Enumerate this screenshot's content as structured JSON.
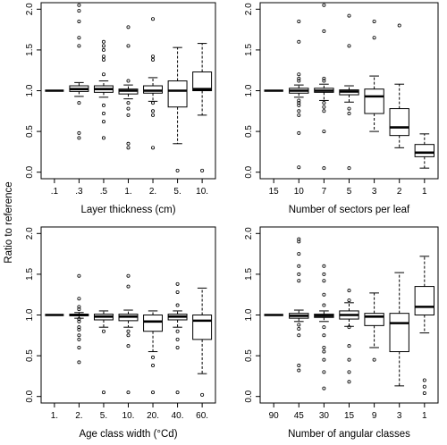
{
  "figure": {
    "ylabel": "Ratio to reference"
  },
  "chart_data": [
    {
      "type": "box",
      "xlabel": "Layer thickness (cm)",
      "ylabel": "Ratio to reference",
      "ylim": [
        0,
        2
      ],
      "yticks": [
        "0.0",
        "0.5",
        "1.0",
        "1.5",
        "2.0"
      ],
      "categories": [
        ".1",
        ".3",
        ".5",
        "1.",
        "2.",
        "5.",
        "10."
      ],
      "boxes": [
        {
          "min": 1.0,
          "q1": 1.0,
          "median": 1.0,
          "q3": 1.0,
          "max": 1.0,
          "outliers": []
        },
        {
          "min": 0.93,
          "q1": 0.99,
          "median": 1.02,
          "q3": 1.06,
          "max": 1.1,
          "outliers": [
            2.05,
            1.98,
            1.85,
            1.65,
            1.55,
            0.85,
            0.48,
            0.42
          ]
        },
        {
          "min": 0.92,
          "q1": 0.98,
          "median": 1.02,
          "q3": 1.06,
          "max": 1.12,
          "outliers": [
            1.6,
            1.55,
            1.5,
            1.42,
            1.38,
            1.2,
            0.82,
            0.72,
            0.62,
            0.42
          ]
        },
        {
          "min": 0.9,
          "q1": 0.96,
          "median": 1.0,
          "q3": 1.02,
          "max": 1.07,
          "outliers": [
            1.78,
            1.55,
            1.12,
            0.85,
            0.78,
            0.7,
            0.35,
            0.3
          ]
        },
        {
          "min": 0.87,
          "q1": 0.97,
          "median": 1.0,
          "q3": 1.06,
          "max": 1.16,
          "outliers": [
            1.88,
            1.42,
            1.38,
            0.85,
            0.75,
            0.7,
            0.3
          ]
        },
        {
          "min": 0.35,
          "q1": 0.8,
          "median": 1.0,
          "q3": 1.12,
          "max": 1.53,
          "outliers": [
            0.02
          ]
        },
        {
          "min": 0.7,
          "q1": 1.0,
          "median": 1.02,
          "q3": 1.23,
          "max": 1.58,
          "outliers": [
            0.02
          ]
        }
      ]
    },
    {
      "type": "box",
      "xlabel": "Number of sectors per leaf",
      "ylim": [
        0,
        2
      ],
      "yticks": [
        "0.0",
        "0.5",
        "1.0",
        "1.5",
        "2.0"
      ],
      "categories": [
        "15",
        "10",
        "7",
        "5",
        "3",
        "2",
        "1"
      ],
      "boxes": [
        {
          "min": 1.0,
          "q1": 1.0,
          "median": 1.0,
          "q3": 1.0,
          "max": 1.0,
          "outliers": []
        },
        {
          "min": 0.92,
          "q1": 0.97,
          "median": 1.0,
          "q3": 1.03,
          "max": 1.07,
          "outliers": [
            1.85,
            1.6,
            1.2,
            1.15,
            1.12,
            0.88,
            0.85,
            0.82,
            0.75,
            0.7,
            0.48,
            0.06
          ]
        },
        {
          "min": 0.88,
          "q1": 0.98,
          "median": 1.0,
          "q3": 1.03,
          "max": 1.08,
          "outliers": [
            2.05,
            1.73,
            1.15,
            1.12,
            0.85,
            0.8,
            0.75,
            0.5,
            0.05
          ]
        },
        {
          "min": 0.86,
          "q1": 0.95,
          "median": 0.99,
          "q3": 1.01,
          "max": 1.06,
          "outliers": [
            1.92,
            1.55,
            0.78,
            0.72,
            0.05
          ]
        },
        {
          "min": 0.5,
          "q1": 0.72,
          "median": 0.93,
          "q3": 1.02,
          "max": 1.18,
          "outliers": [
            1.85,
            1.65
          ]
        },
        {
          "min": 0.3,
          "q1": 0.45,
          "median": 0.55,
          "q3": 0.78,
          "max": 1.08,
          "outliers": [
            1.8
          ]
        },
        {
          "min": 0.05,
          "q1": 0.19,
          "median": 0.24,
          "q3": 0.34,
          "max": 0.47,
          "outliers": []
        }
      ]
    },
    {
      "type": "box",
      "xlabel": "Age class width (°Cd)",
      "ylabel": "Ratio to reference",
      "ylim": [
        0,
        2
      ],
      "yticks": [
        "0.0",
        "0.5",
        "1.0",
        "1.5",
        "2.0"
      ],
      "categories": [
        "1.",
        "2.",
        "5.",
        "10.",
        "20.",
        "40.",
        "60."
      ],
      "boxes": [
        {
          "min": 1.0,
          "q1": 1.0,
          "median": 1.0,
          "q3": 1.0,
          "max": 1.0,
          "outliers": []
        },
        {
          "min": 0.96,
          "q1": 0.99,
          "median": 1.0,
          "q3": 1.01,
          "max": 1.03,
          "outliers": [
            1.48,
            1.2,
            1.1,
            1.07,
            0.95,
            0.92,
            0.85,
            0.82,
            0.75,
            0.7,
            0.6,
            0.42
          ]
        },
        {
          "min": 0.85,
          "q1": 0.94,
          "median": 0.98,
          "q3": 1.01,
          "max": 1.05,
          "outliers": [
            0.8,
            0.05
          ]
        },
        {
          "min": 0.85,
          "q1": 0.93,
          "median": 0.98,
          "q3": 1.01,
          "max": 1.06,
          "outliers": [
            1.48,
            1.35,
            0.8,
            0.75,
            0.62,
            0.05
          ]
        },
        {
          "min": 0.55,
          "q1": 0.8,
          "median": 0.92,
          "q3": 1.0,
          "max": 1.05,
          "outliers": [
            0.48,
            0.38,
            0.05
          ]
        },
        {
          "min": 0.85,
          "q1": 0.94,
          "median": 0.98,
          "q3": 1.01,
          "max": 1.05,
          "outliers": [
            1.38,
            1.28,
            1.12,
            0.8,
            0.7,
            0.6,
            0.05
          ]
        },
        {
          "min": 0.28,
          "q1": 0.7,
          "median": 0.93,
          "q3": 1.0,
          "max": 1.33,
          "outliers": [
            0.02
          ]
        }
      ]
    },
    {
      "type": "box",
      "xlabel": "Number of angular classes",
      "ylim": [
        0,
        2
      ],
      "yticks": [
        "0.0",
        "0.5",
        "1.0",
        "1.5",
        "2.0"
      ],
      "categories": [
        "90",
        "45",
        "30",
        "15",
        "9",
        "3",
        "1"
      ],
      "boxes": [
        {
          "min": 1.0,
          "q1": 1.0,
          "median": 1.0,
          "q3": 1.0,
          "max": 1.0,
          "outliers": []
        },
        {
          "min": 0.92,
          "q1": 0.96,
          "median": 0.99,
          "q3": 1.02,
          "max": 1.06,
          "outliers": [
            1.93,
            1.9,
            1.75,
            1.6,
            1.5,
            1.42,
            0.88,
            0.83,
            0.75,
            0.38,
            0.32
          ]
        },
        {
          "min": 0.92,
          "q1": 0.97,
          "median": 0.99,
          "q3": 1.01,
          "max": 1.05,
          "outliers": [
            1.6,
            1.5,
            1.42,
            1.25,
            1.12,
            0.85,
            0.75,
            0.6,
            0.55,
            0.45,
            0.3,
            0.1
          ]
        },
        {
          "min": 0.86,
          "q1": 0.95,
          "median": 1.0,
          "q3": 1.05,
          "max": 1.15,
          "outliers": [
            1.3,
            1.18,
            0.85,
            0.62,
            0.45,
            0.3,
            0.18
          ]
        },
        {
          "min": 0.6,
          "q1": 0.87,
          "median": 0.98,
          "q3": 1.02,
          "max": 1.27,
          "outliers": [
            0.45
          ]
        },
        {
          "min": 0.13,
          "q1": 0.55,
          "median": 0.9,
          "q3": 1.02,
          "max": 1.52,
          "outliers": []
        },
        {
          "min": 0.78,
          "q1": 1.0,
          "median": 1.1,
          "q3": 1.35,
          "max": 1.72,
          "outliers": [
            0.2,
            0.12,
            0.04
          ]
        }
      ]
    }
  ]
}
